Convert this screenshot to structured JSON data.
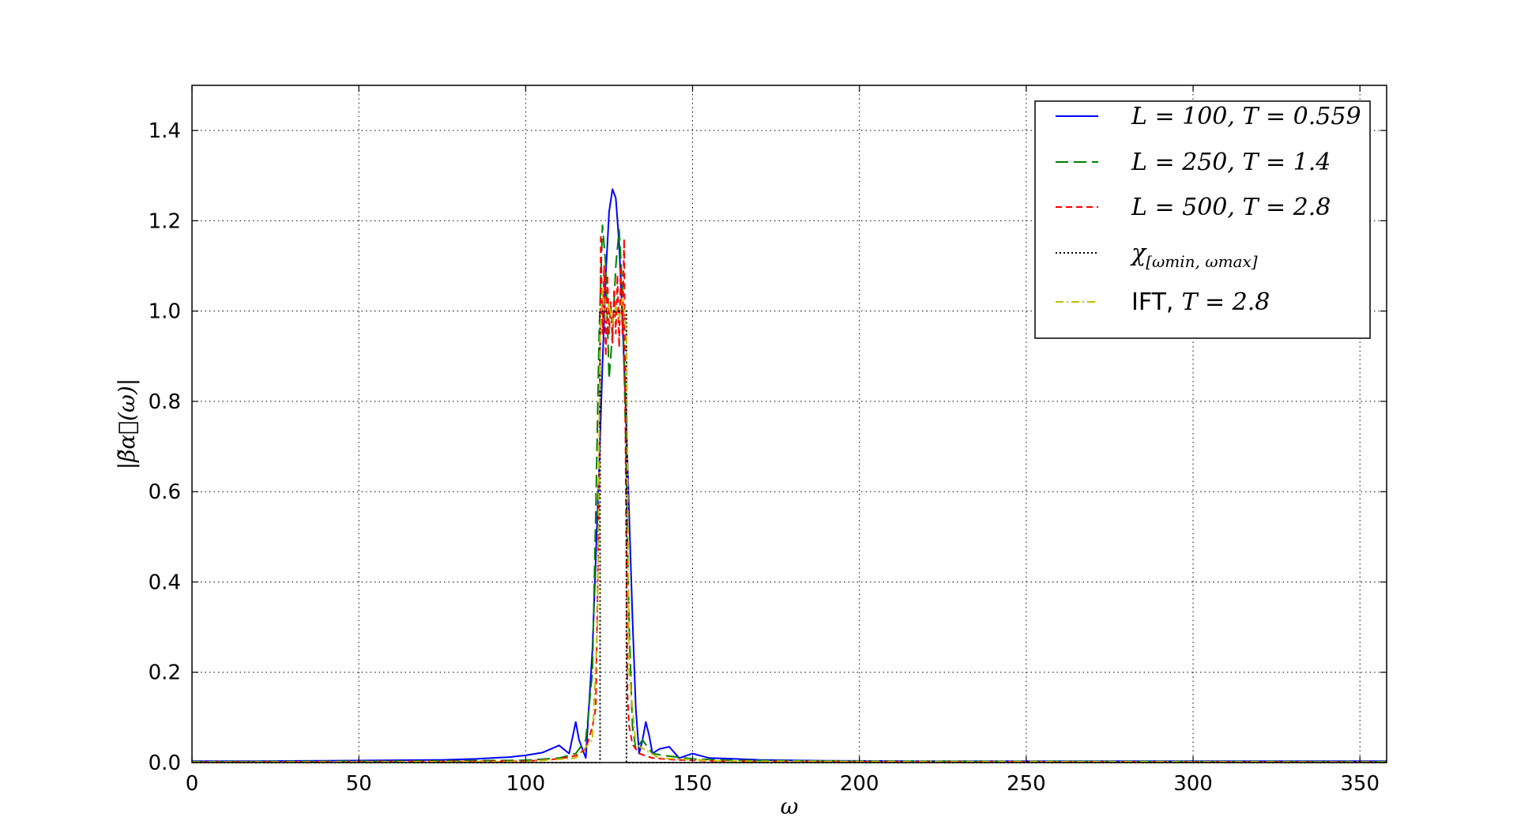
{
  "chart_data": {
    "type": "line",
    "title": "",
    "xlabel": "ω",
    "ylabel": "|β̃α⃗(ω)|",
    "xlim": [
      0,
      358
    ],
    "ylim": [
      0,
      1.5
    ],
    "xticks": [
      "0",
      "50",
      "100",
      "150",
      "200",
      "250",
      "300",
      "350"
    ],
    "yticks": [
      "0.0",
      "0.2",
      "0.4",
      "0.6",
      "0.8",
      "1.0",
      "1.2",
      "1.4"
    ],
    "grid": true,
    "legend_position": "top-right",
    "series": [
      {
        "name": "L = 100, T = 0.559",
        "color": "#0000ff",
        "style": "solid",
        "x": [
          0,
          20,
          40,
          60,
          75,
          85,
          95,
          100,
          105,
          110,
          113,
          115,
          116,
          118,
          120,
          121,
          122,
          123,
          124,
          125,
          126,
          127,
          128,
          129,
          130,
          131,
          132,
          133,
          134,
          135,
          136,
          137,
          138,
          140,
          143,
          146,
          150,
          155,
          160,
          170,
          190,
          220,
          260,
          300,
          358
        ],
        "y": [
          0.003,
          0.003,
          0.004,
          0.005,
          0.006,
          0.008,
          0.012,
          0.016,
          0.022,
          0.038,
          0.02,
          0.09,
          0.05,
          0.01,
          0.25,
          0.45,
          0.65,
          0.88,
          1.08,
          1.22,
          1.27,
          1.25,
          1.15,
          0.98,
          0.78,
          0.55,
          0.32,
          0.12,
          0.02,
          0.05,
          0.09,
          0.06,
          0.02,
          0.03,
          0.035,
          0.01,
          0.02,
          0.01,
          0.009,
          0.006,
          0.004,
          0.003,
          0.003,
          0.003,
          0.003
        ]
      },
      {
        "name": "L = 250, T = 1.4",
        "color": "#008000",
        "style": "dashed",
        "x": [
          0,
          60,
          100,
          110,
          115,
          118,
          120,
          121,
          122,
          123,
          124,
          125,
          126,
          127,
          128,
          129,
          130,
          131,
          132,
          133,
          135,
          138,
          142,
          150,
          160,
          200,
          358
        ],
        "y": [
          0.002,
          0.003,
          0.005,
          0.01,
          0.02,
          0.05,
          0.2,
          0.55,
          0.95,
          1.19,
          1.1,
          0.85,
          0.95,
          1.1,
          1.18,
          1.05,
          0.7,
          0.3,
          0.08,
          0.03,
          0.05,
          0.02,
          0.015,
          0.008,
          0.005,
          0.003,
          0.002
        ]
      },
      {
        "name": "L = 500, T = 2.8",
        "color": "#ff0000",
        "style": "dashed",
        "x": [
          0,
          100,
          110,
          115,
          118,
          120,
          121,
          122,
          122.5,
          123,
          123.5,
          124,
          124.5,
          125,
          125.5,
          126,
          126.5,
          127,
          127.5,
          128,
          128.5,
          129,
          129.5,
          130,
          130.5,
          131,
          132,
          134,
          138,
          145,
          160,
          200,
          358
        ],
        "y": [
          0.001,
          0.003,
          0.008,
          0.015,
          0.03,
          0.08,
          0.12,
          0.6,
          1.17,
          0.95,
          1.1,
          0.9,
          1.08,
          0.95,
          1.02,
          0.93,
          1.05,
          0.95,
          1.08,
          0.92,
          1.1,
          0.95,
          1.16,
          0.6,
          0.15,
          0.08,
          0.04,
          0.02,
          0.01,
          0.006,
          0.003,
          0.002,
          0.001
        ]
      },
      {
        "name": "χ[ωmin, ωmax]",
        "color": "#000000",
        "style": "dotted",
        "x": [
          0,
          122.3,
          122.3,
          130.2,
          130.2,
          358
        ],
        "y": [
          0,
          0,
          1,
          1,
          0,
          0
        ]
      },
      {
        "name": "IFT, T = 2.8",
        "color": "#bfbf00",
        "style": "dashdot",
        "x": [
          0,
          100,
          115,
          120,
          121.5,
          122.3,
          123,
          124,
          125,
          126,
          127,
          128,
          129,
          130.2,
          131,
          133,
          140,
          160,
          358
        ],
        "y": [
          0.001,
          0.002,
          0.01,
          0.05,
          0.3,
          0.95,
          1.05,
          0.98,
          1.02,
          0.97,
          1.01,
          0.98,
          1.03,
          0.95,
          0.2,
          0.04,
          0.01,
          0.003,
          0.001
        ]
      }
    ]
  },
  "legend": {
    "entries": [
      {
        "main": "L = 100, T = 0.559"
      },
      {
        "main": "L = 250, T = 1.4"
      },
      {
        "main": "L = 500, T = 2.8"
      },
      {
        "main": "χ",
        "sub": "[ωmin, ωmax]"
      },
      {
        "prefix": "IFT,",
        "main": "T = 2.8"
      }
    ]
  }
}
